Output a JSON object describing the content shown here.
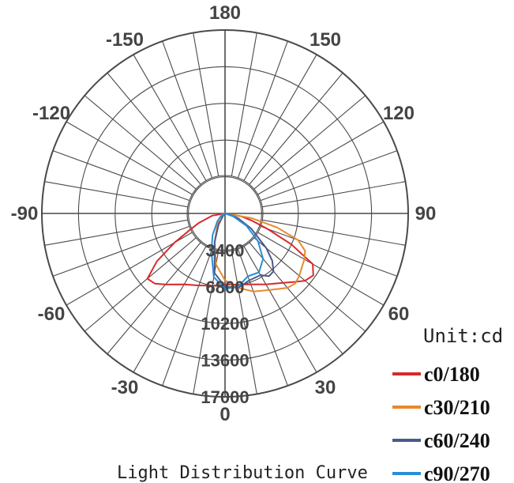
{
  "chart_data": {
    "type": "polar",
    "title": "Light Distribution Curve",
    "unit": "Unit:cd",
    "radial_ticks": [
      3400,
      6800,
      10200,
      13600,
      17000
    ],
    "radial_max": 17000,
    "angle_labels": [
      {
        "angle": 0,
        "label": "0"
      },
      {
        "angle": 30,
        "label": "30"
      },
      {
        "angle": 60,
        "label": "60"
      },
      {
        "angle": 90,
        "label": "90"
      },
      {
        "angle": 120,
        "label": "120"
      },
      {
        "angle": 150,
        "label": "150"
      },
      {
        "angle": 180,
        "label": "180"
      },
      {
        "angle": -150,
        "label": "-150"
      },
      {
        "angle": -120,
        "label": "-120"
      },
      {
        "angle": -90,
        "label": "-90"
      },
      {
        "angle": -60,
        "label": "-60"
      },
      {
        "angle": -30,
        "label": "-30"
      }
    ],
    "grid": true,
    "legend_position": "bottom-right",
    "series": [
      {
        "name": "c0/180",
        "color": "#d62b2b",
        "angles": [
          -90,
          -80,
          -70,
          -65,
          -60,
          -55,
          -50,
          -45,
          -40,
          -30,
          -20,
          -10,
          0,
          10,
          20,
          30,
          40,
          45,
          50,
          55,
          60,
          65,
          70,
          75,
          80,
          90
        ],
        "values": [
          0,
          1200,
          2600,
          3600,
          5400,
          7700,
          9400,
          9200,
          8600,
          7600,
          7100,
          6800,
          6600,
          6700,
          7000,
          7600,
          8400,
          9000,
          9700,
          10000,
          9400,
          6800,
          4200,
          2600,
          1500,
          0
        ]
      },
      {
        "name": "c30/210",
        "color": "#e8892e",
        "angles": [
          -90,
          -70,
          -50,
          -30,
          -20,
          -10,
          0,
          10,
          20,
          30,
          40,
          45,
          50,
          55,
          60,
          65,
          70,
          75,
          80,
          90
        ],
        "values": [
          0,
          300,
          700,
          1500,
          2800,
          4800,
          6200,
          7000,
          7700,
          8200,
          9000,
          9200,
          9000,
          8700,
          8500,
          8200,
          7200,
          5000,
          2500,
          0
        ]
      },
      {
        "name": "c60/240",
        "color": "#4a5a8a",
        "angles": [
          -90,
          -45,
          -30,
          -20,
          -10,
          0,
          10,
          20,
          30,
          35,
          40,
          45,
          50,
          60,
          70,
          80,
          90
        ],
        "values": [
          0,
          200,
          1200,
          2800,
          5600,
          6800,
          7000,
          6600,
          6600,
          7100,
          7000,
          6200,
          5000,
          2800,
          1300,
          300,
          0
        ]
      },
      {
        "name": "c90/270",
        "color": "#2a8ed6",
        "angles": [
          -90,
          -60,
          -45,
          -30,
          -20,
          -10,
          0,
          10,
          20,
          30,
          40,
          50,
          60,
          70,
          90
        ],
        "values": [
          0,
          300,
          1000,
          2300,
          3700,
          6000,
          7000,
          6900,
          6200,
          6300,
          5500,
          4000,
          2300,
          800,
          0
        ]
      }
    ]
  }
}
